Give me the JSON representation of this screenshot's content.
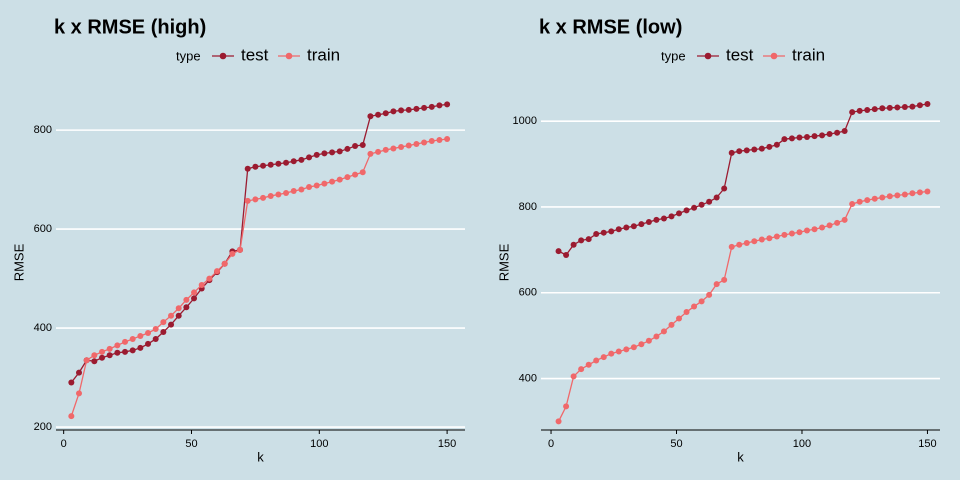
{
  "chart_data": [
    {
      "type": "line",
      "title": "k x RMSE (high)",
      "legend_title": "type",
      "xlabel": "k",
      "ylabel": "RMSE",
      "x": [
        3,
        6,
        9,
        12,
        15,
        18,
        21,
        24,
        27,
        30,
        33,
        36,
        39,
        42,
        45,
        48,
        51,
        54,
        57,
        60,
        63,
        66,
        69,
        72,
        75,
        78,
        81,
        84,
        87,
        90,
        93,
        96,
        99,
        102,
        105,
        108,
        111,
        114,
        117,
        120,
        123,
        126,
        129,
        132,
        135,
        138,
        141,
        144,
        147,
        150
      ],
      "series": [
        {
          "name": "test",
          "color": "#9b1b30",
          "values": [
            290,
            310,
            335,
            333,
            340,
            345,
            350,
            352,
            355,
            360,
            368,
            378,
            392,
            407,
            425,
            442,
            460,
            480,
            497,
            513,
            530,
            555,
            558,
            722,
            726,
            728,
            730,
            732,
            734,
            737,
            740,
            745,
            750,
            753,
            755,
            757,
            762,
            768,
            770,
            828,
            831,
            834,
            838,
            840,
            841,
            843,
            845,
            847,
            850,
            852
          ]
        },
        {
          "name": "train",
          "color": "#f0686a",
          "values": [
            222,
            268,
            335,
            345,
            352,
            358,
            365,
            372,
            378,
            384,
            390,
            398,
            412,
            425,
            440,
            457,
            472,
            487,
            500,
            515,
            530,
            550,
            558,
            657,
            660,
            663,
            667,
            670,
            673,
            677,
            680,
            685,
            688,
            692,
            696,
            700,
            705,
            710,
            715,
            752,
            756,
            760,
            763,
            766,
            769,
            772,
            775,
            778,
            780,
            782
          ]
        }
      ],
      "xlim": [
        -3,
        157
      ],
      "xticks": [
        0,
        50,
        100,
        150
      ],
      "ylim": [
        194,
        871
      ],
      "yticks": [
        200,
        400,
        600,
        800
      ],
      "grid": true,
      "legend": "top"
    },
    {
      "type": "line",
      "title": "k x RMSE (low)",
      "legend_title": "type",
      "xlabel": "k",
      "ylabel": "RMSE",
      "x": [
        3,
        6,
        9,
        12,
        15,
        18,
        21,
        24,
        27,
        30,
        33,
        36,
        39,
        42,
        45,
        48,
        51,
        54,
        57,
        60,
        63,
        66,
        69,
        72,
        75,
        78,
        81,
        84,
        87,
        90,
        93,
        96,
        99,
        102,
        105,
        108,
        111,
        114,
        117,
        120,
        123,
        126,
        129,
        132,
        135,
        138,
        141,
        144,
        147,
        150
      ],
      "series": [
        {
          "name": "test",
          "color": "#9b1b30",
          "values": [
            697,
            688,
            712,
            722,
            725,
            737,
            740,
            743,
            748,
            752,
            755,
            760,
            765,
            770,
            773,
            778,
            785,
            792,
            798,
            805,
            812,
            822,
            843,
            926,
            930,
            932,
            934,
            936,
            940,
            945,
            958,
            960,
            962,
            963,
            965,
            967,
            970,
            973,
            977,
            1021,
            1024,
            1026,
            1028,
            1030,
            1031,
            1032,
            1033,
            1034,
            1037,
            1040
          ]
        },
        {
          "name": "train",
          "color": "#f0686a",
          "values": [
            300,
            335,
            405,
            422,
            432,
            442,
            450,
            458,
            463,
            468,
            473,
            480,
            488,
            498,
            510,
            525,
            540,
            555,
            568,
            580,
            595,
            620,
            630,
            707,
            712,
            716,
            720,
            724,
            727,
            731,
            735,
            738,
            741,
            745,
            748,
            752,
            757,
            763,
            770,
            807,
            812,
            816,
            819,
            822,
            825,
            827,
            829,
            832,
            834,
            836
          ]
        }
      ],
      "xlim": [
        -4,
        155
      ],
      "xticks": [
        0,
        50,
        100,
        150
      ],
      "ylim": [
        280,
        1061
      ],
      "yticks": [
        400,
        600,
        800,
        1000
      ],
      "grid": true,
      "legend": "top"
    }
  ]
}
